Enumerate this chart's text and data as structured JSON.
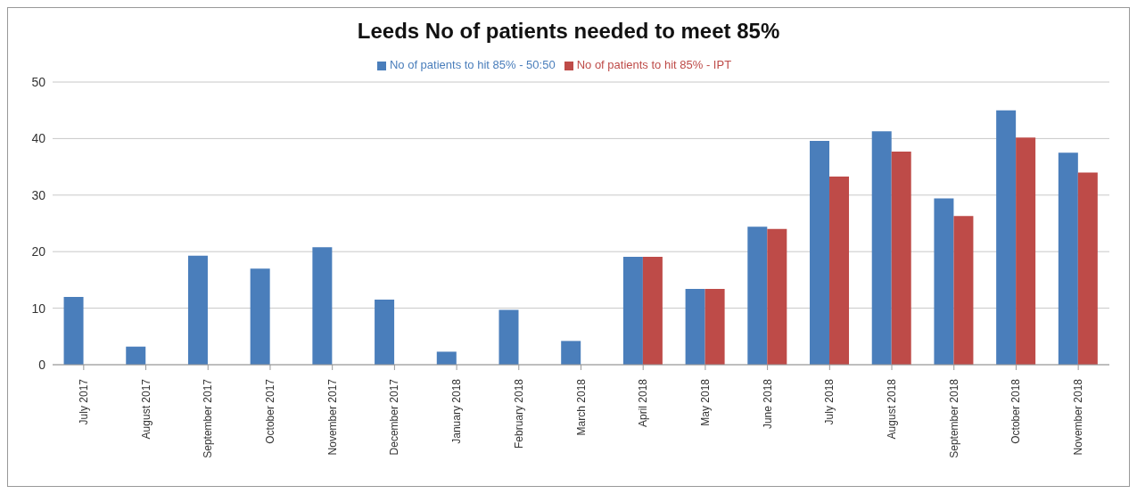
{
  "chart_data": {
    "type": "bar",
    "title": "Leeds No of patients needed to meet 85%",
    "categories": [
      "July 2017",
      "August 2017",
      "September 2017",
      "October 2017",
      "November 2017",
      "December 2017",
      "January 2018",
      "February 2018",
      "March 2018",
      "April 2018",
      "May 2018",
      "June 2018",
      "July 2018",
      "August 2018",
      "September 2018",
      "October 2018",
      "November 2018"
    ],
    "series": [
      {
        "name": "No of patients to hit 85% - 50:50",
        "color": "#4a7ebb",
        "values": [
          12,
          3.2,
          19.3,
          17,
          20.8,
          11.5,
          2.3,
          9.7,
          4.2,
          19.1,
          13.4,
          24.4,
          39.6,
          41.3,
          29.4,
          45,
          37.5
        ]
      },
      {
        "name": "No of patients to hit 85% - IPT",
        "color": "#be4b48",
        "values": [
          null,
          null,
          null,
          null,
          null,
          null,
          null,
          null,
          null,
          19.1,
          13.4,
          24,
          33.3,
          37.7,
          26.3,
          40.2,
          34
        ]
      }
    ],
    "ylim": [
      0,
      50
    ],
    "yticks": [
      0,
      10,
      20,
      30,
      40,
      50
    ],
    "grid": "y",
    "legend": "top"
  }
}
